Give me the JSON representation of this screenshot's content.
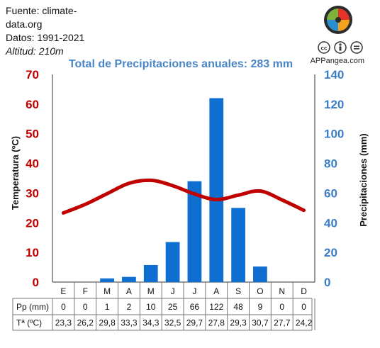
{
  "source": {
    "line1": "Fuente: climate-",
    "line2": "data.org",
    "years": "Datos: 1991-2021",
    "altitude": "Altitud: 210m"
  },
  "brand": {
    "name": "APPangea.com",
    "logo_colors": [
      "#e63329",
      "#f4a11d",
      "#2a8fd0",
      "#7db33a"
    ],
    "license_icons": [
      "cc-icon",
      "by-icon",
      "nd-icon"
    ]
  },
  "chart_data": {
    "type": "bar",
    "title": "Total de Precipitaciones anuales: 283 mm",
    "categories": [
      "E",
      "F",
      "M",
      "A",
      "M",
      "J",
      "J",
      "A",
      "S",
      "O",
      "N",
      "D"
    ],
    "series": [
      {
        "name": "Pp (mm)",
        "type": "bar",
        "axis": "right",
        "color": "#0f6fd1",
        "values": [
          0,
          0,
          1,
          2,
          10,
          25,
          66,
          122,
          48,
          9,
          0,
          0
        ],
        "plotted": [
          0,
          0,
          2.5,
          3.5,
          11.5,
          27,
          68,
          124,
          50,
          10.5,
          0,
          0
        ]
      },
      {
        "name": "Tª (ºC)",
        "type": "line",
        "axis": "left",
        "color": "#c00000",
        "values": [
          "23,3",
          "26,2",
          "29,8",
          "33,3",
          "34,3",
          "32,5",
          "29,7",
          "27,8",
          "29,3",
          "30,7",
          "27,7",
          "24,2"
        ],
        "plotted": [
          23.3,
          26.2,
          29.8,
          33.3,
          34.3,
          32.5,
          29.7,
          27.8,
          29.3,
          30.7,
          27.7,
          24.2
        ]
      }
    ],
    "ylabel_left": "Temperatura (ºC)",
    "ylabel_right": "Precipitaciones (mm)",
    "ylim_left": [
      0,
      70
    ],
    "ylim_right": [
      0,
      140
    ],
    "yticks_left": [
      0,
      10,
      20,
      30,
      40,
      50,
      60,
      70
    ],
    "yticks_right": [
      0,
      20,
      40,
      60,
      80,
      100,
      120,
      140
    ],
    "left_axis_color": "#c00000",
    "right_axis_color": "#3a7dc6",
    "title_color": "#4a86c6",
    "grid": false,
    "table_rows": [
      "Pp (mm)",
      "Tª (ºC)"
    ]
  }
}
